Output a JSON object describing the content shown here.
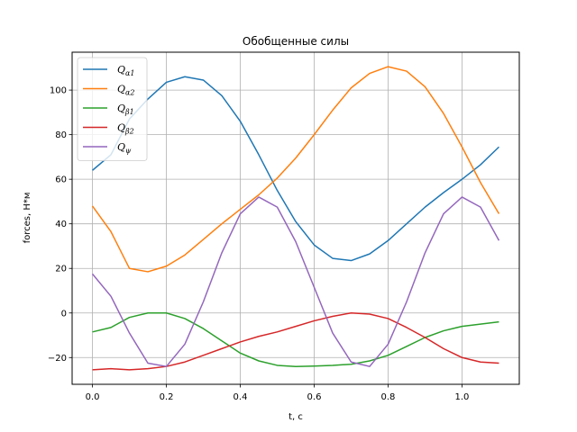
{
  "chart_data": {
    "type": "line",
    "title": "Обобщенные силы",
    "xlabel": "t, c",
    "ylabel": "forces, Н*м",
    "xlim": [
      -0.055,
      1.155
    ],
    "ylim": [
      -32,
      117
    ],
    "xticks": [
      0.0,
      0.2,
      0.4,
      0.6,
      0.8,
      1.0
    ],
    "xtick_labels": [
      "0.0",
      "0.2",
      "0.4",
      "0.6",
      "0.8",
      "1.0"
    ],
    "yticks": [
      -20,
      0,
      20,
      40,
      60,
      80,
      100
    ],
    "ytick_labels": [
      "−20",
      "0",
      "20",
      "40",
      "60",
      "80",
      "100"
    ],
    "grid": true,
    "legend_position": "top-left",
    "x": [
      0.0,
      0.05,
      0.1,
      0.15,
      0.2,
      0.25,
      0.3,
      0.35,
      0.4,
      0.45,
      0.5,
      0.55,
      0.6,
      0.65,
      0.7,
      0.75,
      0.8,
      0.85,
      0.9,
      0.95,
      1.0,
      1.05,
      1.1
    ],
    "series": [
      {
        "name": "Q",
        "subscript": "α1",
        "color": "#1f77b4",
        "values": [
          64,
          71,
          87,
          96,
          103.5,
          106,
          104.5,
          97.5,
          86,
          71,
          55,
          41,
          30.5,
          24.5,
          23.5,
          26.5,
          32.5,
          40,
          47.5,
          54,
          60,
          66.5,
          74.5
        ]
      },
      {
        "name": "Q",
        "subscript": "α2",
        "color": "#ff7f0e",
        "values": [
          48,
          36.5,
          20,
          18.5,
          21,
          26,
          33,
          40,
          46.5,
          53,
          60.5,
          69.5,
          80,
          91,
          101,
          107.5,
          110.5,
          108.5,
          101.5,
          89.5,
          74.5,
          58.5,
          44.5
        ]
      },
      {
        "name": "Q",
        "subscript": "β1",
        "color": "#2ca02c",
        "values": [
          -8.5,
          -6.5,
          -2,
          0,
          0,
          -2.5,
          -7,
          -12.5,
          -18,
          -21.5,
          -23.5,
          -24,
          -23.8,
          -23.5,
          -23,
          -21.5,
          -19,
          -15,
          -11,
          -8,
          -6,
          -5,
          -4
        ]
      },
      {
        "name": "Q",
        "subscript": "β2",
        "color": "#d62728",
        "values": [
          -25.5,
          -25,
          -25.5,
          -25,
          -24,
          -22,
          -19,
          -16,
          -13,
          -10.5,
          -8.5,
          -6,
          -3.5,
          -1.5,
          0,
          -0.5,
          -2.5,
          -6.5,
          -11,
          -16,
          -20,
          -22,
          -22.5
        ]
      },
      {
        "name": "Q",
        "subscript": "ψ",
        "color": "#9467bd",
        "values": [
          17.5,
          7.5,
          -9,
          -22.5,
          -24,
          -14,
          5,
          27,
          44.5,
          52,
          47.5,
          32,
          11.5,
          -9,
          -22,
          -24,
          -14,
          5,
          27,
          44.5,
          52,
          47.5,
          32.5
        ]
      }
    ]
  }
}
